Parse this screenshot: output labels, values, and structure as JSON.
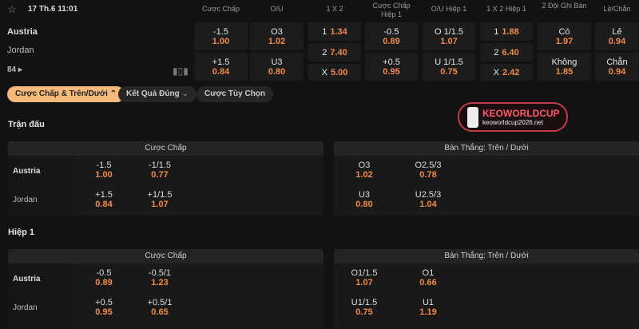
{
  "match": {
    "date": "17 Th.6 11:01",
    "home": "Austria",
    "away": "Jordan",
    "more_count": "84"
  },
  "headers": [
    "Cược Chấp",
    "O/U",
    "1 X 2",
    "Cược Chấp Hiệp 1",
    "O/U Hiệp 1",
    "1 X 2 Hiệp 1",
    "2 Đội Ghi Bàn",
    "Lẻ/Chẵn"
  ],
  "top_odds": {
    "handicap": [
      {
        "line": "-1.5",
        "odd": "1.00"
      },
      {
        "line": "+1.5",
        "odd": "0.84"
      }
    ],
    "ou": [
      {
        "line": "O3",
        "odd": "1.02"
      },
      {
        "line": "U3",
        "odd": "0.80"
      }
    ],
    "x12": [
      {
        "line": "1",
        "odd": "1.34"
      },
      {
        "line": "2",
        "odd": "7.40"
      },
      {
        "line": "X",
        "odd": "5.00"
      }
    ],
    "handicap_h1": [
      {
        "line": "-0.5",
        "odd": "0.89"
      },
      {
        "line": "+0.5",
        "odd": "0.95"
      }
    ],
    "ou_h1": [
      {
        "line": "O 1/1.5",
        "odd": "1.07"
      },
      {
        "line": "U 1/1.5",
        "odd": "0.75"
      }
    ],
    "x12_h1": [
      {
        "line": "1",
        "odd": "1.88"
      },
      {
        "line": "2",
        "odd": "6.40"
      },
      {
        "line": "X",
        "odd": "2.42"
      }
    ],
    "btts": [
      {
        "line": "Có",
        "odd": "1.97"
      },
      {
        "line": "Không",
        "odd": "1.85"
      }
    ],
    "oddeven": [
      {
        "line": "Lẻ",
        "odd": "0.94"
      },
      {
        "line": "Chẵn",
        "odd": "0.94"
      }
    ]
  },
  "tabs": [
    "Cược Chấp & Trên/Dưới",
    "Kết Quả Đúng",
    "Cược Tùy Chọn"
  ],
  "logo": {
    "brand": "KEOWORLDCUP",
    "site": "keoworldcup2026.net"
  },
  "sections": [
    {
      "title": "Trận đấu",
      "left_title": "Cược Chấp",
      "right_title": "Bàn Thắng: Trên / Dưới",
      "left": [
        [
          {
            "line": "-1.5",
            "odd": "1.00"
          },
          {
            "line": "-1/1.5",
            "odd": "0.77"
          }
        ],
        [
          {
            "line": "+1.5",
            "odd": "0.84"
          },
          {
            "line": "+1/1.5",
            "odd": "1.07"
          }
        ]
      ],
      "right": [
        [
          {
            "line": "O3",
            "odd": "1.02"
          },
          {
            "line": "O2.5/3",
            "odd": "0.78"
          }
        ],
        [
          {
            "line": "U3",
            "odd": "0.80"
          },
          {
            "line": "U2.5/3",
            "odd": "1.04"
          }
        ]
      ]
    },
    {
      "title": "Hiệp 1",
      "left_title": "Cược Chấp",
      "right_title": "Bàn Thắng: Trên / Dưới",
      "left": [
        [
          {
            "line": "-0.5",
            "odd": "0.89"
          },
          {
            "line": "-0.5/1",
            "odd": "1.23"
          }
        ],
        [
          {
            "line": "+0.5",
            "odd": "0.95"
          },
          {
            "line": "+0.5/1",
            "odd": "0.65"
          }
        ]
      ],
      "right": [
        [
          {
            "line": "O1/1.5",
            "odd": "1.07"
          },
          {
            "line": "O1",
            "odd": "0.66"
          }
        ],
        [
          {
            "line": "U1/1.5",
            "odd": "0.75"
          },
          {
            "line": "U1",
            "odd": "1.19"
          }
        ]
      ]
    }
  ],
  "colors": {
    "accent": "#f08a4b",
    "tab_active": "#f5b97a",
    "background": "#121212"
  }
}
